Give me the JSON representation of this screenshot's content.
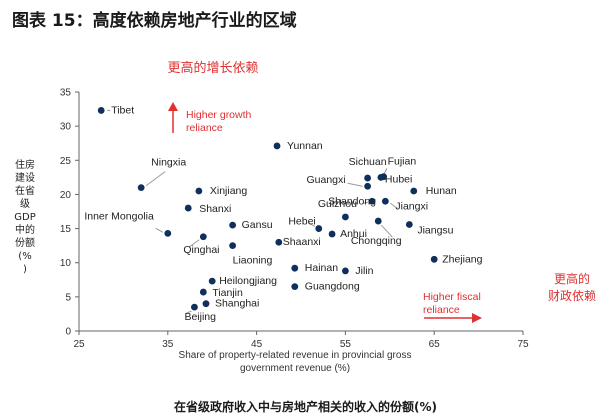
{
  "figure_title": "图表 15：高度依赖房地产行业的区域",
  "bottom_title": "在省级政府收入中与房地产相关的收入的份额(%)",
  "top_note": "更高的增长依赖",
  "right_note": [
    "更高的",
    "财政依赖"
  ],
  "annotations": {
    "higher_growth": [
      "Higher growth",
      "reliance"
    ],
    "higher_fiscal": [
      "Higher fiscal",
      "reliance"
    ]
  },
  "colors": {
    "point": "#0f2f5c",
    "accent": "#e03030",
    "leader": "#9a9a9a"
  },
  "chart_data": {
    "type": "scatter",
    "xlabel": [
      "Share of property-related revenue in provincial gross",
      "government revenue (%)"
    ],
    "ylabel": [
      "住房",
      "建设",
      "在省",
      "级",
      "GDP",
      "中的",
      "份额",
      "(%",
      ")"
    ],
    "xlim": [
      25,
      75
    ],
    "ylim": [
      0,
      35
    ],
    "xticks": [
      25,
      35,
      45,
      55,
      65,
      75
    ],
    "yticks": [
      0,
      5,
      10,
      15,
      20,
      25,
      30,
      35
    ],
    "grid": false,
    "points": [
      {
        "name": "Tibet",
        "x": 27.5,
        "y": 32.3
      },
      {
        "name": "Yunnan",
        "x": 47.3,
        "y": 27.1
      },
      {
        "name": "Fujian",
        "x": 59.3,
        "y": 22.6
      },
      {
        "name": "Sichuan",
        "x": 57.5,
        "y": 22.4
      },
      {
        "name": "Hubei",
        "x": 59.0,
        "y": 22.5
      },
      {
        "name": "Ningxia",
        "x": 32.0,
        "y": 21.0
      },
      {
        "name": "Guangxi",
        "x": 57.5,
        "y": 21.2
      },
      {
        "name": "Xinjiang",
        "x": 38.5,
        "y": 20.5
      },
      {
        "name": "Hunan",
        "x": 62.7,
        "y": 20.5
      },
      {
        "name": "Shandong",
        "x": 58.0,
        "y": 19.0
      },
      {
        "name": "Jiangxi",
        "x": 59.5,
        "y": 19.0
      },
      {
        "name": "Shanxi",
        "x": 37.3,
        "y": 18.0
      },
      {
        "name": "Guizhou",
        "x": 55.0,
        "y": 16.7
      },
      {
        "name": "Chongqing",
        "x": 58.7,
        "y": 16.1
      },
      {
        "name": "Jiangsu",
        "x": 62.2,
        "y": 15.6
      },
      {
        "name": "Gansu",
        "x": 42.3,
        "y": 15.5
      },
      {
        "name": "Hebei",
        "x": 52.0,
        "y": 15.0
      },
      {
        "name": "Anhui",
        "x": 53.5,
        "y": 14.2
      },
      {
        "name": "Inner Mongolia",
        "x": 35.0,
        "y": 14.3
      },
      {
        "name": "Qinghai",
        "x": 39.0,
        "y": 13.8
      },
      {
        "name": "Shaanxi",
        "x": 47.5,
        "y": 13.0
      },
      {
        "name": "Liaoning",
        "x": 42.3,
        "y": 12.5
      },
      {
        "name": "Zhejiang",
        "x": 65.0,
        "y": 10.5
      },
      {
        "name": "Hainan",
        "x": 49.3,
        "y": 9.2
      },
      {
        "name": "Jilin",
        "x": 55.0,
        "y": 8.8
      },
      {
        "name": "Heilongjiang",
        "x": 40.0,
        "y": 7.3
      },
      {
        "name": "Guangdong",
        "x": 49.3,
        "y": 6.5
      },
      {
        "name": "Tianjin",
        "x": 39.0,
        "y": 5.7
      },
      {
        "name": "Shanghai",
        "x": 39.3,
        "y": 4.0
      },
      {
        "name": "Beijing",
        "x": 38.0,
        "y": 3.5
      }
    ]
  }
}
